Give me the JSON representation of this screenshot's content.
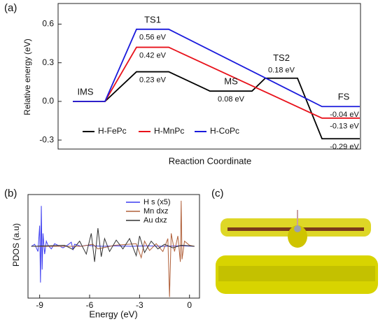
{
  "chart_data": [
    {
      "type": "energy-profile",
      "panel": "(a)",
      "x_label": "Reaction Coordinate",
      "y_label": "Relative energy (eV)",
      "categories": [
        "IMS",
        "TS1",
        "MS",
        "TS2",
        "FS"
      ],
      "series": [
        {
          "name": "H-FePc",
          "color": "#000000",
          "values": [
            0,
            0.23,
            0.08,
            0.18,
            -0.29
          ],
          "value_labels": [
            null,
            "0.23 eV",
            "0.08 eV",
            "0.18 eV",
            "-0.29 eV"
          ]
        },
        {
          "name": "H-MnPc",
          "color": "#e8121b",
          "values": [
            0,
            0.42,
            null,
            null,
            -0.13
          ],
          "value_labels": [
            null,
            "0.42 eV",
            null,
            null,
            "-0.13 eV"
          ]
        },
        {
          "name": "H-CoPc",
          "color": "#1a1adc",
          "values": [
            0,
            0.56,
            null,
            null,
            -0.04
          ],
          "value_labels": [
            null,
            "0.56 eV",
            null,
            null,
            "-0.04 eV"
          ]
        }
      ],
      "ylim": [
        -0.37,
        0.76
      ],
      "yticks": [
        {
          "value": -0.3,
          "label": "-0.3"
        },
        {
          "value": 0,
          "label": "0.0"
        },
        0.3,
        0.6
      ],
      "legend": "bottom-left"
    },
    {
      "type": "line",
      "panel": "(b)",
      "x_label": "Energy (eV)",
      "y_label": "PDOS (a.u)",
      "xlim": [
        -9.7,
        0.6
      ],
      "xticks": [
        -9,
        -6,
        -3,
        0
      ],
      "ylim": [
        -1,
        1
      ],
      "series": [
        {
          "name": "H s (x5)",
          "color": "#3b3bf0",
          "x": [
            -9.5,
            -9.3,
            -9.1,
            -9.0,
            -8.95,
            -8.9,
            -8.85,
            -8.8,
            -8.7,
            -8.6,
            -8.5,
            -8.3,
            -8.1,
            -7.9,
            -7.6,
            -7.3,
            -7.1,
            -7.0,
            -6.9,
            -6.7,
            -6.5,
            -6.2,
            -5.8,
            -5.2,
            -4.5,
            -3.5,
            -2.5,
            -1.5,
            -0.5,
            0.3
          ],
          "values": [
            0,
            0.04,
            -0.1,
            0.4,
            -0.7,
            0.78,
            -0.45,
            0.25,
            -0.15,
            0.1,
            0.02,
            -0.05,
            0.05,
            0.02,
            -0.03,
            0.03,
            0.08,
            -0.06,
            0.04,
            0.02,
            0,
            0.02,
            0.01,
            0,
            0.01,
            0,
            0.01,
            0,
            0.01,
            0
          ]
        },
        {
          "name": "Mn dxz",
          "color": "#b0603a",
          "x": [
            -9.5,
            -6.5,
            -5.8,
            -5.5,
            -4.5,
            -3.2,
            -2.9,
            -2.7,
            -2.4,
            -2.0,
            -1.6,
            -1.3,
            -1.2,
            -1.1,
            -0.9,
            -0.7,
            -0.55,
            -0.5,
            -0.45,
            -0.3,
            0,
            0.3
          ],
          "values": [
            0,
            0,
            0.04,
            -0.05,
            0.02,
            0.05,
            -0.22,
            0.1,
            -0.08,
            0.05,
            -0.1,
            0.15,
            -0.98,
            0.25,
            -0.1,
            0.2,
            -0.3,
            0.88,
            -0.25,
            0.1,
            0.02,
            0
          ]
        },
        {
          "name": "Au dxz",
          "color": "#333333",
          "x": [
            -9.5,
            -7.5,
            -7.0,
            -6.6,
            -6.2,
            -5.9,
            -5.7,
            -5.5,
            -5.3,
            -5.1,
            -4.8,
            -4.4,
            -4.0,
            -3.6,
            -3.2,
            -3.0,
            -2.7,
            -2.3,
            -1.9,
            -1.5,
            -1.0,
            -0.5,
            0,
            0.3
          ],
          "values": [
            0,
            0.02,
            -0.06,
            0.1,
            -0.15,
            0.25,
            -0.3,
            0.35,
            -0.2,
            0.15,
            -0.1,
            0.12,
            -0.05,
            0.15,
            -0.18,
            0.2,
            -0.12,
            0.1,
            -0.05,
            0.04,
            -0.03,
            0.02,
            0.01,
            0
          ]
        }
      ],
      "legend": "top-right"
    },
    {
      "type": "image",
      "panel": "(c)"
    }
  ]
}
